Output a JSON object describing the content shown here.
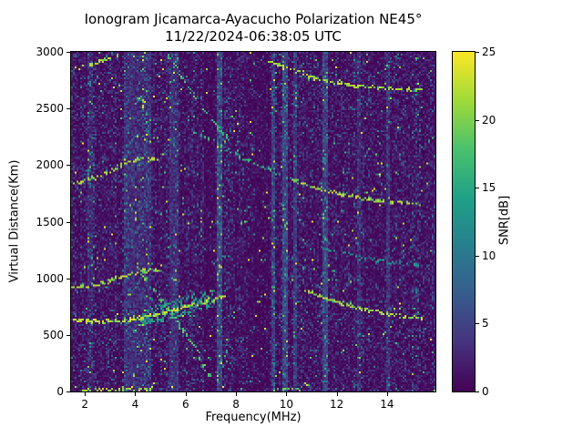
{
  "chart_data": {
    "type": "heatmap",
    "title": "Ionogram Jicamarca-Ayacucho Polarization NE45°",
    "subtitle": "11/22/2024-06:38:05 UTC",
    "xlabel": "Frequency(MHz)",
    "ylabel": "Virtual Distance(Km)",
    "xlim": [
      1.45,
      15.92
    ],
    "ylim": [
      0,
      3000
    ],
    "xticks": [
      2,
      4,
      6,
      8,
      10,
      12,
      14
    ],
    "yticks": [
      0,
      500,
      1000,
      1500,
      2000,
      2500,
      3000
    ],
    "grid": false,
    "legend": "none",
    "colorbar": {
      "label": "SNR[dB]",
      "range": [
        0,
        25
      ],
      "ticks": [
        0,
        5,
        10,
        15,
        20,
        25
      ],
      "colormap": "viridis",
      "colors": [
        "#440154",
        "#46327e",
        "#365c8d",
        "#277f8e",
        "#1fa187",
        "#4ac16d",
        "#a0da39",
        "#fde725"
      ]
    },
    "noise_floor_db": 2,
    "rfi_stripes": [
      {
        "f0": 2.1,
        "f1": 2.3,
        "boost": 1.5
      },
      {
        "f0": 3.55,
        "f1": 4.0,
        "boost": 2.5
      },
      {
        "f0": 4.0,
        "f1": 4.65,
        "boost": 2.0
      },
      {
        "f0": 5.35,
        "f1": 5.7,
        "boost": 2.5
      },
      {
        "f0": 6.75,
        "f1": 7.15,
        "boost": -1.0
      },
      {
        "f0": 7.25,
        "f1": 7.42,
        "boost": 4.5
      },
      {
        "f0": 8.3,
        "f1": 9.3,
        "boost": -0.8
      },
      {
        "f0": 9.4,
        "f1": 9.58,
        "boost": 3.5
      },
      {
        "f0": 9.85,
        "f1": 10.05,
        "boost": 4.5
      },
      {
        "f0": 10.25,
        "f1": 10.45,
        "boost": 3.5
      },
      {
        "f0": 11.4,
        "f1": 11.62,
        "boost": 4.0
      },
      {
        "f0": 12.78,
        "f1": 12.92,
        "boost": 2.0
      },
      {
        "f0": 13.95,
        "f1": 14.08,
        "boost": 2.5
      }
    ],
    "traces": [
      {
        "name": "F-layer-echo",
        "db": 22,
        "gap": 0.25,
        "width": 1.2,
        "points": [
          [
            1.5,
            635
          ],
          [
            2.6,
            620
          ],
          [
            3.6,
            640
          ],
          [
            4.4,
            665
          ],
          [
            5.2,
            710
          ],
          [
            6.0,
            760
          ],
          [
            6.8,
            805
          ],
          [
            7.6,
            855
          ]
        ]
      },
      {
        "name": "F-layer-spread-cloud",
        "db": 13,
        "gap": 0.1,
        "multi": 3,
        "spread": 5,
        "points": [
          [
            4.2,
            660
          ],
          [
            5.0,
            705
          ],
          [
            5.8,
            755
          ],
          [
            6.6,
            800
          ],
          [
            7.1,
            828
          ]
        ]
      },
      {
        "name": "second-hop-echo",
        "db": 21,
        "gap": 0.35,
        "points": [
          [
            1.5,
            930
          ],
          [
            2.4,
            948
          ],
          [
            3.1,
            992
          ],
          [
            3.8,
            1042
          ],
          [
            4.3,
            1075
          ],
          [
            4.7,
            1090
          ],
          [
            5.0,
            1075
          ]
        ]
      },
      {
        "name": "upper-hump-echo",
        "db": 21,
        "gap": 0.35,
        "points": [
          [
            1.5,
            1835
          ],
          [
            2.3,
            1882
          ],
          [
            2.9,
            1950
          ],
          [
            3.5,
            2015
          ],
          [
            4.0,
            2055
          ],
          [
            4.5,
            2070
          ],
          [
            4.9,
            2045
          ]
        ]
      },
      {
        "name": "top-left-echo",
        "db": 21,
        "gap": 0.45,
        "points": [
          [
            1.5,
            2855
          ],
          [
            2.3,
            2900
          ],
          [
            2.9,
            2950
          ],
          [
            3.4,
            2995
          ]
        ]
      },
      {
        "name": "steep-descending-echo",
        "db": 17,
        "gap": 0.5,
        "points": [
          [
            4.1,
            1100
          ],
          [
            4.7,
            910
          ],
          [
            5.3,
            730
          ],
          [
            5.9,
            540
          ],
          [
            6.4,
            360
          ],
          [
            6.9,
            140
          ]
        ]
      },
      {
        "name": "mid-descending-echo",
        "db": 17,
        "gap": 0.55,
        "points": [
          [
            5.3,
            2980
          ],
          [
            5.9,
            2760
          ],
          [
            6.5,
            2550
          ],
          [
            7.1,
            2380
          ],
          [
            7.7,
            2230
          ]
        ]
      },
      {
        "name": "long-oblique-echo-faint",
        "db": 15,
        "gap": 0.55,
        "points": [
          [
            6.2,
            2330
          ],
          [
            7.2,
            2190
          ],
          [
            8.2,
            2070
          ],
          [
            9.2,
            1975
          ],
          [
            10.2,
            1880
          ]
        ]
      },
      {
        "name": "long-oblique-echo-right",
        "db": 21,
        "gap": 0.3,
        "points": [
          [
            10.2,
            1880
          ],
          [
            11.2,
            1800
          ],
          [
            12.2,
            1745
          ],
          [
            13.2,
            1705
          ],
          [
            14.2,
            1680
          ],
          [
            15.3,
            1660
          ]
        ]
      },
      {
        "name": "top-right-echo",
        "db": 21,
        "gap": 0.35,
        "points": [
          [
            9.3,
            2930
          ],
          [
            10.1,
            2852
          ],
          [
            10.9,
            2790
          ],
          [
            11.8,
            2740
          ],
          [
            12.8,
            2705
          ],
          [
            13.8,
            2690
          ],
          [
            14.8,
            2680
          ],
          [
            15.3,
            2676
          ]
        ]
      },
      {
        "name": "lower-right-echo",
        "db": 21,
        "gap": 0.3,
        "points": [
          [
            10.7,
            905
          ],
          [
            11.4,
            845
          ],
          [
            12.1,
            790
          ],
          [
            12.9,
            740
          ],
          [
            13.7,
            700
          ],
          [
            14.5,
            672
          ],
          [
            15.3,
            655
          ]
        ]
      },
      {
        "name": "right-mid-faint-echo",
        "db": 12,
        "gap": 0.6,
        "points": [
          [
            11.3,
            1290
          ],
          [
            12.2,
            1235
          ],
          [
            13.1,
            1185
          ],
          [
            14.1,
            1155
          ],
          [
            15.3,
            1130
          ]
        ]
      },
      {
        "name": "ground-echo-left",
        "db": 22,
        "gap": 0.5,
        "points": [
          [
            1.8,
            25
          ],
          [
            3.0,
            25
          ],
          [
            4.7,
            30
          ]
        ]
      },
      {
        "name": "ground-echo-mid",
        "db": 18,
        "gap": 0.5,
        "points": [
          [
            9.5,
            25
          ],
          [
            10.5,
            30
          ]
        ]
      }
    ]
  }
}
